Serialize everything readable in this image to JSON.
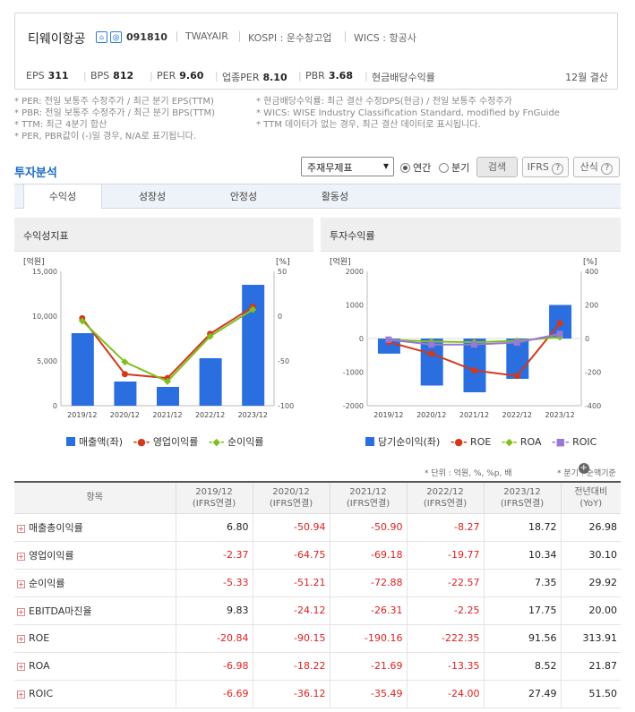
{
  "company": {
    "name": "티웨이항공",
    "code": "091810",
    "ticker": "TWAYAIR",
    "market": "KOSPI : 운수창고업",
    "wics": "WICS : 항공사",
    "fiscal": "12월 결산"
  },
  "metrics": [
    {
      "label": "EPS",
      "value": "311"
    },
    {
      "label": "BPS",
      "value": "812"
    },
    {
      "label": "PER",
      "value": "9.60"
    },
    {
      "label": "업종PER",
      "value": "8.10"
    },
    {
      "label": "PBR",
      "value": "3.68"
    },
    {
      "label": "현금배당수익률",
      "value": ""
    }
  ],
  "notes_left": [
    "* PER: 전일 보통주 수정주가 / 최근 분기 EPS(TTM)",
    "* PBR: 전일 보통주 수정주가 / 최근 분기 BPS(TTM)",
    "* TTM: 최근 4분기 합산",
    "* PER, PBR값이 (-)일 경우, N/A로 표기됩니다."
  ],
  "notes_right": [
    "* 현금배당수익률: 최근 결산 수정DPS(현금) / 전일 보통주 수정주가",
    "* WICS: WISE Industry Classification Standard, modified by FnGuide",
    "* TTM 데이터가 없는 경우, 최근 결산 데이터로 표시됩니다."
  ],
  "section_title": "투자분석",
  "controls": {
    "select": "주재무제표",
    "annual": "연간",
    "quarter": "분기",
    "search": "검색",
    "ifrs": "IFRS",
    "calc": "산식"
  },
  "tabs": [
    "수익성",
    "성장성",
    "안정성",
    "활동성"
  ],
  "panel1": {
    "title": "수익성지표",
    "unit_left": "[억원]",
    "unit_right": "[%]",
    "legend": [
      "매출액(좌)",
      "영업이익률",
      "순이익률"
    ]
  },
  "panel2": {
    "title": "투자수익률",
    "unit_left": "[억원]",
    "unit_right": "[%]",
    "legend": [
      "당기순이익(좌)",
      "ROE",
      "ROA",
      "ROIC"
    ]
  },
  "colors": {
    "bar": "#2a6ee0",
    "red": "#d03a1b",
    "green": "#7fbf1e",
    "purple": "#9a78d6"
  },
  "chart_data": [
    {
      "type": "bar",
      "categories": [
        "2019/12",
        "2020/12",
        "2021/12",
        "2022/12",
        "2023/12"
      ],
      "yleft": [
        0,
        15000
      ],
      "yleft_ticks": [
        "0",
        "5,000",
        "10,000",
        "15,000"
      ],
      "yright": [
        -100,
        50
      ],
      "yright_ticks": [
        "-100",
        "-50",
        "0",
        "50"
      ],
      "series": [
        {
          "name": "매출액(좌)",
          "axis": "left",
          "kind": "bar",
          "values": [
            8100,
            2700,
            2100,
            5300,
            13500
          ]
        },
        {
          "name": "영업이익률",
          "axis": "right",
          "kind": "line",
          "values": [
            -2.37,
            -64.75,
            -69.18,
            -19.77,
            10.34
          ]
        },
        {
          "name": "순이익률",
          "axis": "right",
          "kind": "line",
          "values": [
            -5.33,
            -51.21,
            -72.88,
            -22.57,
            7.35
          ]
        }
      ]
    },
    {
      "type": "bar",
      "categories": [
        "2019/12",
        "2020/12",
        "2021/12",
        "2022/12",
        "2023/12"
      ],
      "yleft": [
        -2000,
        2000
      ],
      "yleft_ticks": [
        "-2000",
        "-1000",
        "0",
        "1000",
        "2000"
      ],
      "yright": [
        -400,
        400
      ],
      "yright_ticks": [
        "-400",
        "-200",
        "0",
        "200",
        "400"
      ],
      "series": [
        {
          "name": "당기순이익(좌)",
          "axis": "left",
          "kind": "bar",
          "values": [
            -450,
            -1400,
            -1600,
            -1200,
            1000
          ]
        },
        {
          "name": "ROE",
          "axis": "right",
          "kind": "line",
          "values": [
            -20.84,
            -90.15,
            -190.16,
            -222.35,
            91.56
          ]
        },
        {
          "name": "ROA",
          "axis": "right",
          "kind": "line",
          "values": [
            -6.98,
            -18.22,
            -21.69,
            -13.35,
            8.52
          ]
        },
        {
          "name": "ROIC",
          "axis": "right",
          "kind": "line",
          "values": [
            -6.69,
            -36.12,
            -35.49,
            -24.0,
            27.49
          ]
        }
      ]
    }
  ],
  "unit_note_left": "* 단위 : 억원, %, %p, 배",
  "unit_note_right": "* 분기 : 순액기준",
  "table": {
    "headers": [
      [
        "항목",
        ""
      ],
      [
        "2019/12",
        "(IFRS연결)"
      ],
      [
        "2020/12",
        "(IFRS연결)"
      ],
      [
        "2021/12",
        "(IFRS연결)"
      ],
      [
        "2022/12",
        "(IFRS연결)"
      ],
      [
        "2023/12",
        "(IFRS연결)"
      ],
      [
        "전년대비",
        "(YoY)"
      ]
    ],
    "rows": [
      {
        "label": "매출총이익률",
        "values": [
          "6.80",
          "-50.94",
          "-50.90",
          "-8.27",
          "18.72",
          "26.98"
        ]
      },
      {
        "label": "영업이익률",
        "values": [
          "-2.37",
          "-64.75",
          "-69.18",
          "-19.77",
          "10.34",
          "30.10"
        ]
      },
      {
        "label": "순이익률",
        "values": [
          "-5.33",
          "-51.21",
          "-72.88",
          "-22.57",
          "7.35",
          "29.92"
        ]
      },
      {
        "label": "EBITDA마진율",
        "values": [
          "9.83",
          "-24.12",
          "-26.31",
          "-2.25",
          "17.75",
          "20.00"
        ]
      },
      {
        "label": "ROE",
        "values": [
          "-20.84",
          "-90.15",
          "-190.16",
          "-222.35",
          "91.56",
          "313.91"
        ]
      },
      {
        "label": "ROA",
        "values": [
          "-6.98",
          "-18.22",
          "-21.69",
          "-13.35",
          "8.52",
          "21.87"
        ]
      },
      {
        "label": "ROIC",
        "values": [
          "-6.69",
          "-36.12",
          "-35.49",
          "-24.00",
          "27.49",
          "51.50"
        ]
      }
    ]
  }
}
